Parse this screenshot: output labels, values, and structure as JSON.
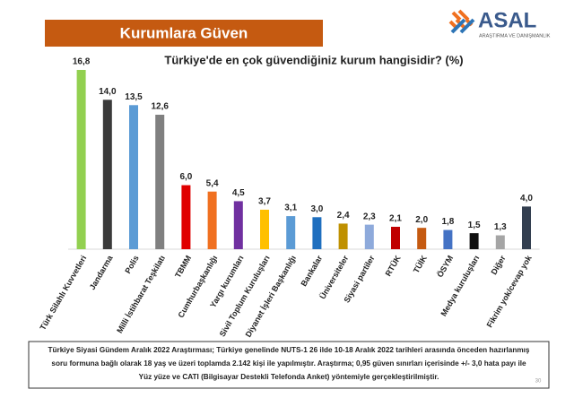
{
  "chart_data": {
    "type": "bar",
    "header": "Kurumlara Güven",
    "logo": {
      "name": "ASAL",
      "tagline": "ARAŞTIRMA VE DANIŞMANLIK"
    },
    "title": "Türkiye'de en çok güvendiğiniz kurum hangisidir? (%)",
    "categories": [
      "Türk Silahlı Kuvvetleri",
      "Jandarma",
      "Polis",
      "Milli İstihbarat Teşkilatı",
      "TBMM",
      "Cumhurbaşkanlığı",
      "Yargı kurumları",
      "Sivil Toplum Kuruluşları",
      "Diyanet İşleri Başkanlığı",
      "Bankalar",
      "Üniversiteler",
      "Siyasi partiler",
      "RTÜK",
      "TÜİK",
      "ÖSYM",
      "Medya kuruluşları",
      "Diğer",
      "Fikrim yok/cevap yok"
    ],
    "values": [
      16.8,
      14.0,
      13.5,
      12.6,
      6.0,
      5.4,
      4.5,
      3.7,
      3.1,
      3.0,
      2.4,
      2.3,
      2.1,
      2.0,
      1.8,
      1.5,
      1.3,
      4.0
    ],
    "value_labels": [
      "16,8",
      "14,0",
      "13,5",
      "12,6",
      "6,0",
      "5,4",
      "4,5",
      "3,7",
      "3,1",
      "3,0",
      "2,4",
      "2,3",
      "2,1",
      "2,0",
      "1,8",
      "1,5",
      "1,3",
      "4,0"
    ],
    "colors": [
      "#92d050",
      "#3a3a3a",
      "#5b9bd5",
      "#808080",
      "#e00000",
      "#f07020",
      "#7030a0",
      "#ffc000",
      "#5b9bd5",
      "#1f6fbf",
      "#bf9000",
      "#8eaadb",
      "#c00000",
      "#c55a11",
      "#4472c4",
      "#111111",
      "#a5a5a5",
      "#333f50"
    ],
    "note": [
      "Türkiye Siyasi Gündem Aralık 2022 Araştırması; Türkiye genelinde NUTS-1 26 ilde 10-18 Aralık 2022 tarihleri arasında önceden hazırlanmış",
      "soru formuna bağlı olarak 18 yaş ve üzeri toplamda 2.142 kişi ile yapılmıştır. Araştırma; 0,95 güven sınırları içerisinde +/- 3,0 hata payı ile",
      "Yüz yüze ve CATI (Bilgisayar Destekli Telefonda Anket) yöntemiyle gerçekleştirilmiştir."
    ],
    "page_number": "30"
  }
}
